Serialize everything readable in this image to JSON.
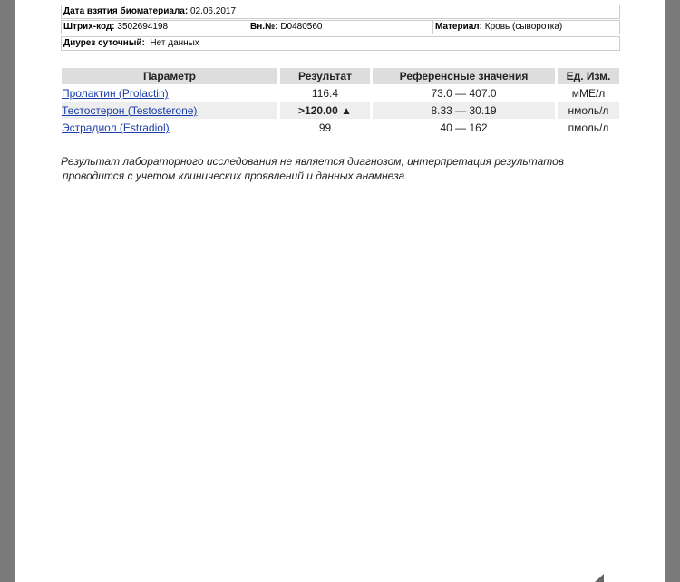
{
  "info": {
    "date_label": "Дата взятия биоматериала:",
    "date_value": "02.06.2017",
    "barcode_label": "Штрих-код:",
    "barcode_value": "3502694198",
    "int_label": "Вн.№:",
    "int_value": "D0480560",
    "material_label": "Материал:",
    "material_value": "Кровь (сыворотка)",
    "diuresis_label": "Диурез суточный:",
    "diuresis_value": "Нет данных"
  },
  "table": {
    "headers": [
      "Параметр",
      "Результат",
      "Референсные значения",
      "Ед. Изм."
    ],
    "rows": [
      {
        "param": "Пролактин (Prolactin)",
        "result": "116.4",
        "ref": "73.0 — 407.0",
        "unit": "мМЕ/л"
      },
      {
        "param": "Тестостерон (Testosterone)",
        "result": ">120.00 ▲",
        "ref": "8.33 — 30.19",
        "unit": "нмоль/л"
      },
      {
        "param": "Эстрадиол (Estradiol)",
        "result": "99",
        "ref": "40 — 162",
        "unit": "пмоль/л"
      }
    ]
  },
  "note": {
    "line1": "Результат лабораторного исследования не является диагнозом, интерпретация результатов",
    "line2": "проводится с учетом клинических проявлений и данных анамнеза."
  }
}
